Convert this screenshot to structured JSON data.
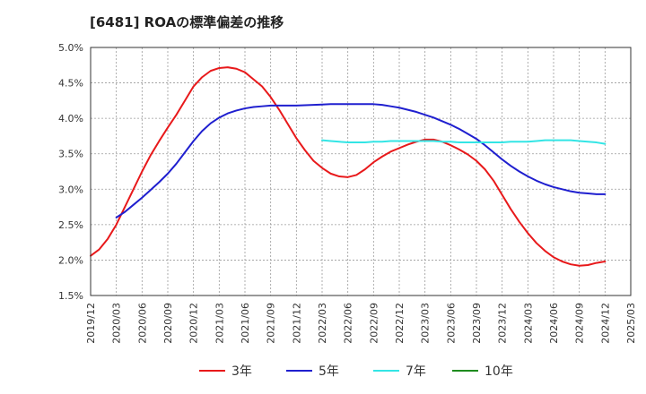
{
  "chart_data": {
    "type": "line",
    "title": "[6481]  ROAの標準偏差の推移",
    "xlabel": "",
    "ylabel": "",
    "x_ticks": [
      "2019/12",
      "2020/03",
      "2020/06",
      "2020/09",
      "2020/12",
      "2021/03",
      "2021/06",
      "2021/09",
      "2021/12",
      "2022/03",
      "2022/06",
      "2022/09",
      "2022/12",
      "2023/03",
      "2023/06",
      "2023/09",
      "2023/12",
      "2024/03",
      "2024/06",
      "2024/09",
      "2024/12",
      "2025/03"
    ],
    "y_ticks": [
      "1.5%",
      "2.0%",
      "2.5%",
      "3.0%",
      "3.5%",
      "4.0%",
      "4.5%",
      "5.0%"
    ],
    "ylim": [
      1.5,
      5.0
    ],
    "grid": true,
    "legend_position": "bottom",
    "series": [
      {
        "name": "3年",
        "color": "#e8191b",
        "x": [
          "2019/12",
          "2020/01",
          "2020/02",
          "2020/03",
          "2020/04",
          "2020/05",
          "2020/06",
          "2020/07",
          "2020/08",
          "2020/09",
          "2020/10",
          "2020/11",
          "2020/12",
          "2021/01",
          "2021/02",
          "2021/03",
          "2021/04",
          "2021/05",
          "2021/06",
          "2021/07",
          "2021/08",
          "2021/09",
          "2021/10",
          "2021/11",
          "2021/12",
          "2022/01",
          "2022/02",
          "2022/03",
          "2022/04",
          "2022/05",
          "2022/06",
          "2022/07",
          "2022/08",
          "2022/09",
          "2022/10",
          "2022/11",
          "2022/12",
          "2023/01",
          "2023/02",
          "2023/03",
          "2023/04",
          "2023/05",
          "2023/06",
          "2023/07",
          "2023/08",
          "2023/09",
          "2023/10",
          "2023/11",
          "2023/12",
          "2024/01",
          "2024/02",
          "2024/03",
          "2024/04",
          "2024/05",
          "2024/06",
          "2024/07",
          "2024/08",
          "2024/09",
          "2024/10",
          "2024/11",
          "2024/12"
        ],
        "values": [
          2.06,
          2.15,
          2.3,
          2.5,
          2.75,
          3.0,
          3.25,
          3.48,
          3.68,
          3.87,
          4.05,
          4.25,
          4.45,
          4.58,
          4.67,
          4.71,
          4.72,
          4.7,
          4.65,
          4.55,
          4.45,
          4.3,
          4.12,
          3.92,
          3.72,
          3.55,
          3.4,
          3.3,
          3.22,
          3.18,
          3.17,
          3.2,
          3.28,
          3.38,
          3.46,
          3.53,
          3.58,
          3.63,
          3.67,
          3.7,
          3.7,
          3.67,
          3.62,
          3.56,
          3.49,
          3.4,
          3.28,
          3.12,
          2.92,
          2.72,
          2.54,
          2.38,
          2.24,
          2.13,
          2.04,
          1.98,
          1.94,
          1.92,
          1.93,
          1.96,
          1.98
        ]
      },
      {
        "name": "5年",
        "color": "#1f1fcf",
        "x": [
          "2020/03",
          "2020/04",
          "2020/05",
          "2020/06",
          "2020/07",
          "2020/08",
          "2020/09",
          "2020/10",
          "2020/11",
          "2020/12",
          "2021/01",
          "2021/02",
          "2021/03",
          "2021/04",
          "2021/05",
          "2021/06",
          "2021/07",
          "2021/08",
          "2021/09",
          "2021/10",
          "2021/11",
          "2021/12",
          "2022/01",
          "2022/02",
          "2022/03",
          "2022/04",
          "2022/05",
          "2022/06",
          "2022/07",
          "2022/08",
          "2022/09",
          "2022/10",
          "2022/11",
          "2022/12",
          "2023/01",
          "2023/02",
          "2023/03",
          "2023/04",
          "2023/05",
          "2023/06",
          "2023/07",
          "2023/08",
          "2023/09",
          "2023/10",
          "2023/11",
          "2023/12",
          "2024/01",
          "2024/02",
          "2024/03",
          "2024/04",
          "2024/05",
          "2024/06",
          "2024/07",
          "2024/08",
          "2024/09",
          "2024/10",
          "2024/11",
          "2024/12"
        ],
        "values": [
          2.6,
          2.68,
          2.78,
          2.88,
          2.99,
          3.1,
          3.22,
          3.36,
          3.52,
          3.68,
          3.82,
          3.93,
          4.01,
          4.07,
          4.11,
          4.14,
          4.16,
          4.17,
          4.18,
          4.18,
          4.18,
          4.18,
          4.185,
          4.19,
          4.195,
          4.2,
          4.2,
          4.2,
          4.2,
          4.2,
          4.2,
          4.19,
          4.17,
          4.15,
          4.12,
          4.09,
          4.05,
          4.01,
          3.96,
          3.91,
          3.85,
          3.78,
          3.71,
          3.62,
          3.52,
          3.42,
          3.33,
          3.25,
          3.18,
          3.12,
          3.07,
          3.03,
          3.0,
          2.97,
          2.95,
          2.94,
          2.93,
          2.93
        ]
      },
      {
        "name": "7年",
        "color": "#33e5e5",
        "x": [
          "2022/03",
          "2022/04",
          "2022/05",
          "2022/06",
          "2022/07",
          "2022/08",
          "2022/09",
          "2022/10",
          "2022/11",
          "2022/12",
          "2023/01",
          "2023/02",
          "2023/03",
          "2023/04",
          "2023/05",
          "2023/06",
          "2023/07",
          "2023/08",
          "2023/09",
          "2023/10",
          "2023/11",
          "2023/12",
          "2024/01",
          "2024/02",
          "2024/03",
          "2024/04",
          "2024/05",
          "2024/06",
          "2024/07",
          "2024/08",
          "2024/09",
          "2024/10",
          "2024/11",
          "2024/12"
        ],
        "values": [
          3.69,
          3.68,
          3.67,
          3.66,
          3.66,
          3.66,
          3.67,
          3.67,
          3.68,
          3.68,
          3.68,
          3.68,
          3.68,
          3.68,
          3.67,
          3.67,
          3.66,
          3.66,
          3.66,
          3.66,
          3.66,
          3.66,
          3.67,
          3.67,
          3.67,
          3.68,
          3.69,
          3.69,
          3.69,
          3.69,
          3.68,
          3.67,
          3.66,
          3.64
        ]
      },
      {
        "name": "10年",
        "color": "#1e8c1e",
        "x": [],
        "values": []
      }
    ]
  }
}
